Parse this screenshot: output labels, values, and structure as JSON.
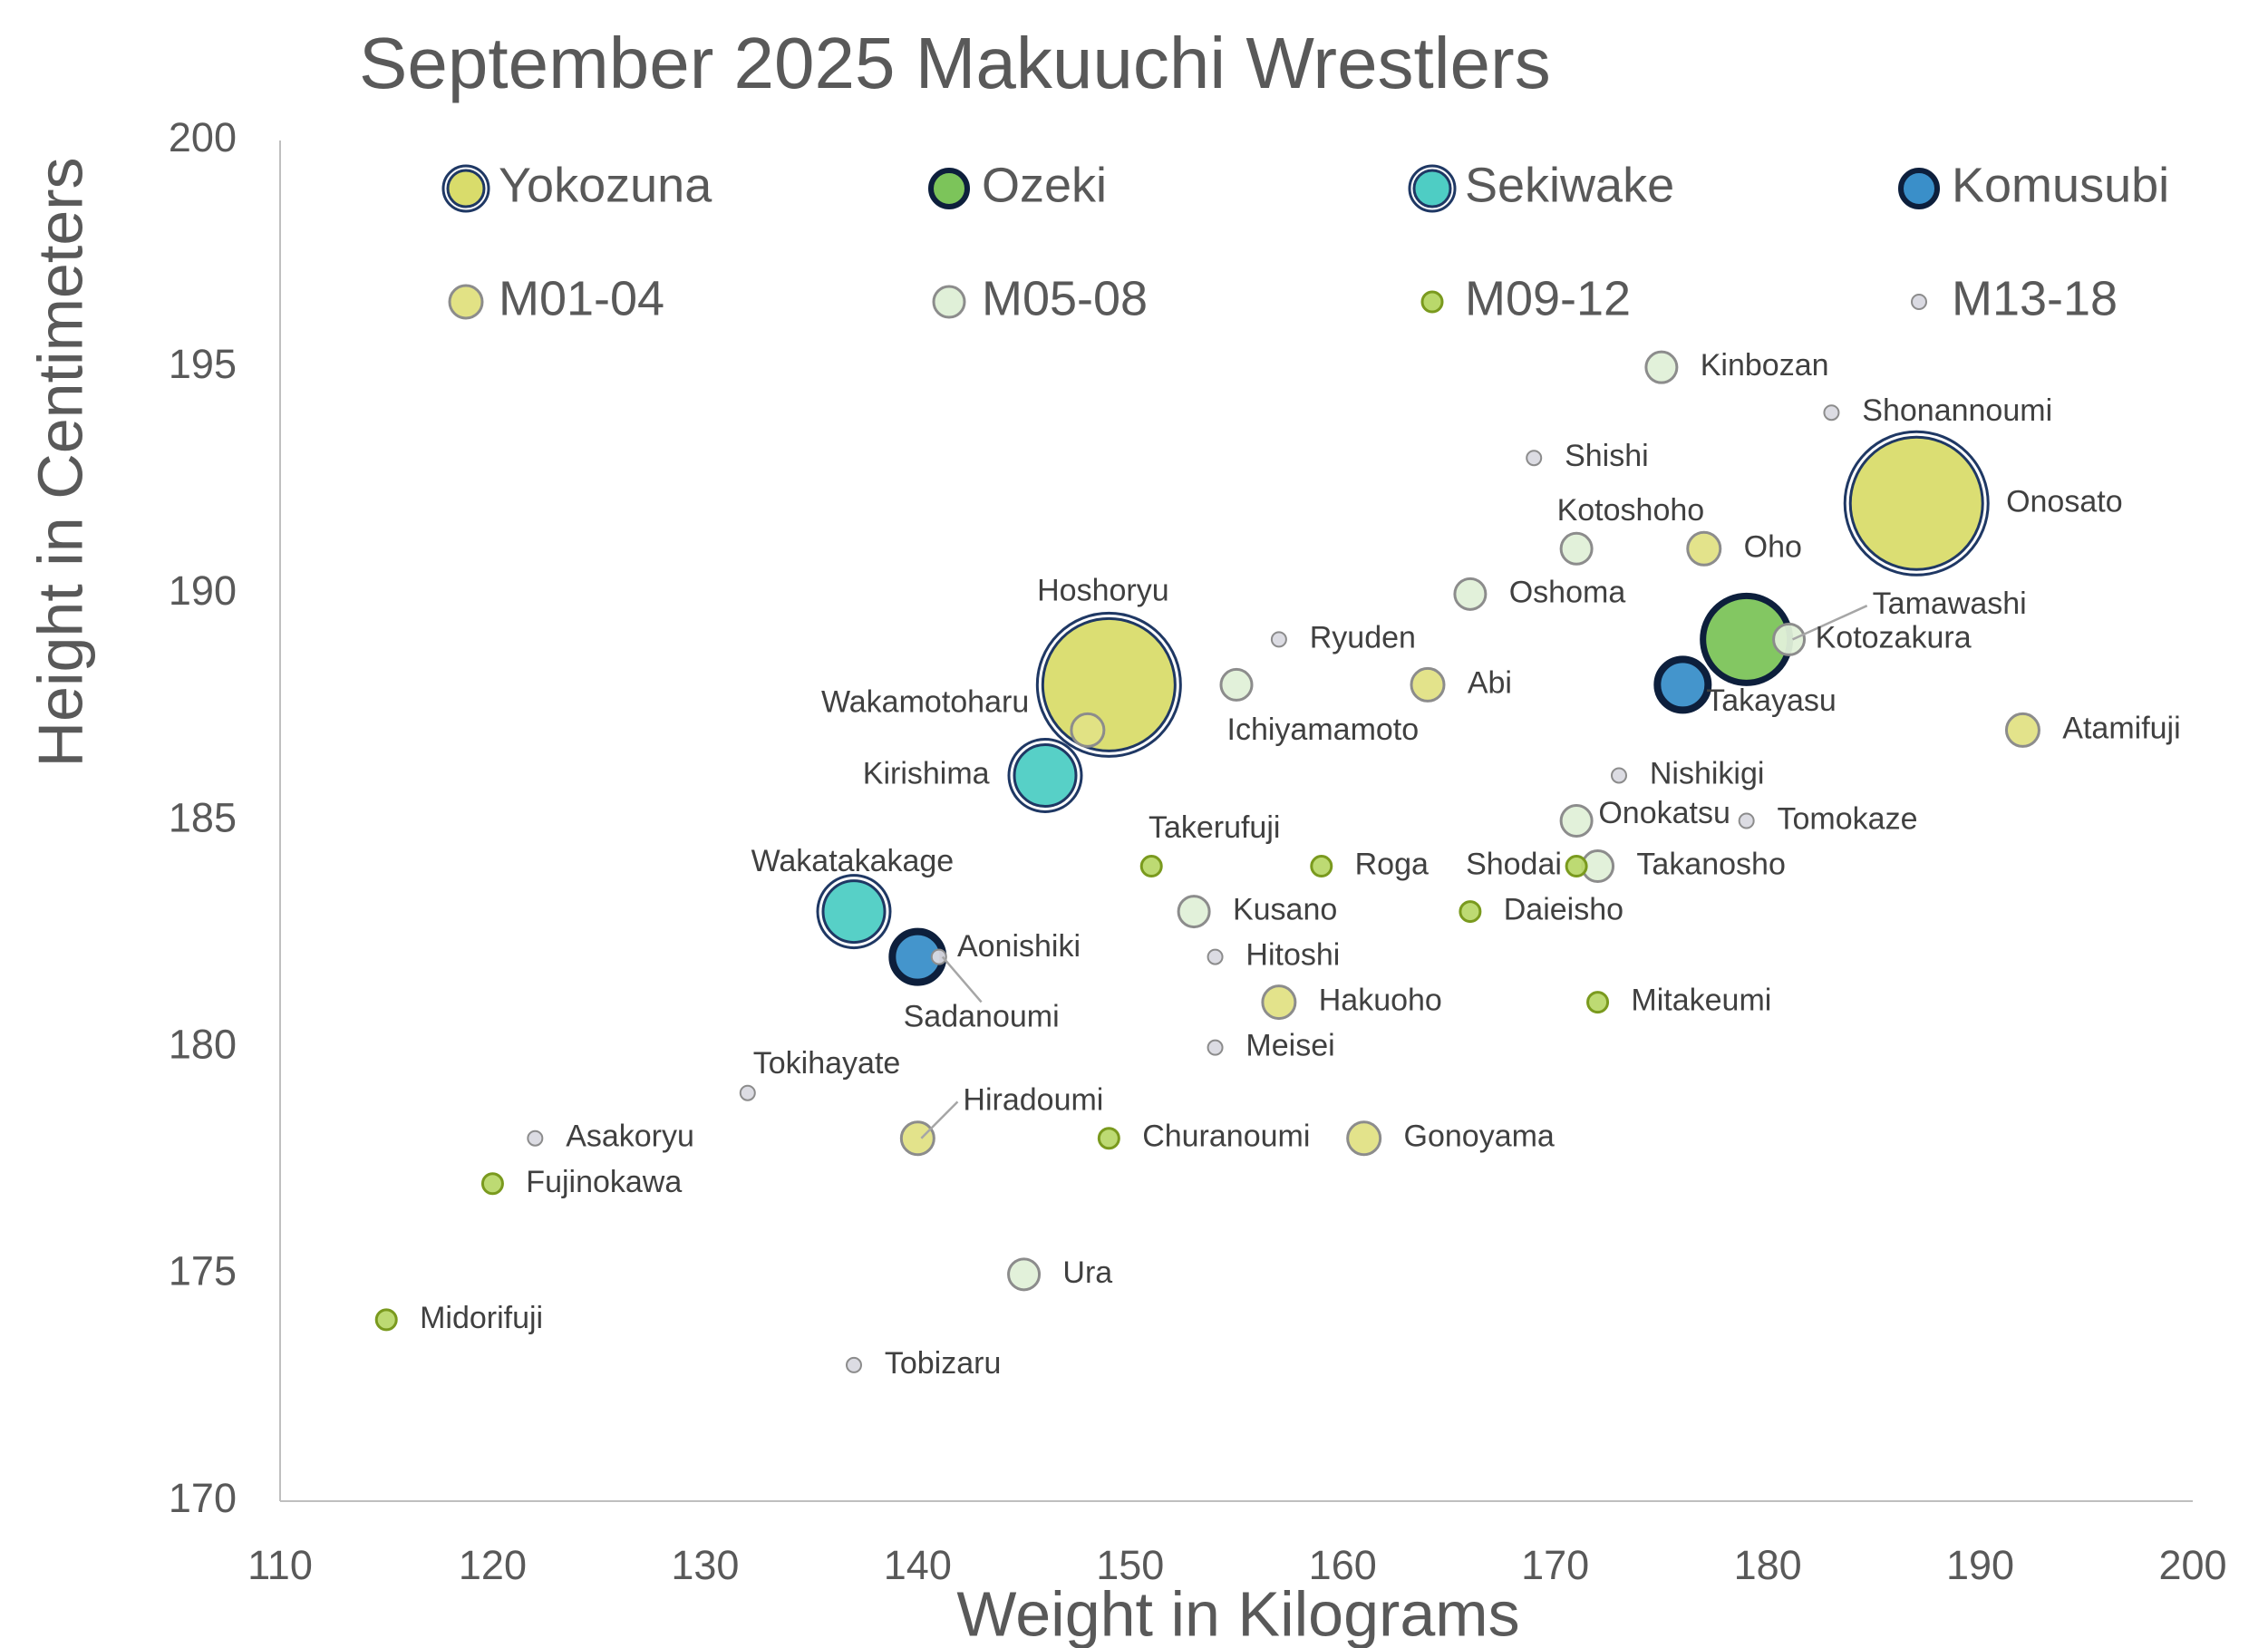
{
  "chart_data": {
    "type": "scatter",
    "title": "September 2025 Makuuchi Wrestlers",
    "x_label": "Weight in Kilograms",
    "y_label": "Height in Centimeters",
    "xlim": [
      110,
      200
    ],
    "xticks": [
      110,
      120,
      130,
      140,
      150,
      160,
      170,
      180,
      190,
      200
    ],
    "ylim": [
      170,
      200
    ],
    "yticks": [
      170,
      175,
      180,
      185,
      190,
      195,
      200
    ],
    "series": [
      {
        "name": "Yokozuna",
        "color": "#d9dc6b",
        "x": [
          149,
          187
        ],
        "values": [
          188,
          192
        ],
        "labels": [
          "Hoshoryu",
          "Onosato"
        ]
      },
      {
        "name": "Ozeki",
        "color": "#7cc45a",
        "x": [
          179
        ],
        "values": [
          189
        ],
        "labels": [
          "Kotozakura"
        ]
      },
      {
        "name": "Sekiwake",
        "color": "#4ecdc4",
        "x": [
          146,
          137
        ],
        "values": [
          186,
          183
        ],
        "labels": [
          "Kirishima",
          "Wakatakakage"
        ]
      },
      {
        "name": "Komusubi",
        "color": "#3a8fc9",
        "x": [
          176,
          140
        ],
        "values": [
          188,
          182
        ],
        "labels": [
          "Takayasu",
          "Aonishiki"
        ]
      },
      {
        "name": "M01-04",
        "color": "#e2e285",
        "x": [
          177,
          164,
          192,
          148,
          157,
          161,
          140
        ],
        "values": [
          191,
          188,
          187,
          187,
          181,
          178,
          178
        ],
        "labels": [
          "Oho",
          "Abi",
          "Atamifuji",
          "Wakamotoharu",
          "Hakuoho",
          "Gonoyama",
          "Hiradoumi"
        ]
      },
      {
        "name": "M05-08",
        "color": "#e0f0d8",
        "x": [
          175,
          171,
          166,
          155,
          171,
          172,
          153,
          145,
          181
        ],
        "values": [
          195,
          191,
          190,
          188,
          185,
          184,
          183,
          175,
          189
        ],
        "labels": [
          "Kinbozan",
          "Kotoshoho",
          "Oshoma",
          "Ichiyamamoto",
          "Onokatsu",
          "Takanosho",
          "Kusano",
          "Ura",
          "Tamawashi"
        ]
      },
      {
        "name": "M09-12",
        "color": "#b9d86b",
        "x": [
          151,
          159,
          171,
          166,
          172,
          149,
          120,
          115
        ],
        "values": [
          184,
          184,
          184,
          183,
          181,
          178,
          177,
          174
        ],
        "labels": [
          "Takerufuji",
          "Roga",
          "Shodai",
          "Daieisho",
          "Mitakeumi",
          "Churanoumi",
          "Fujinokawa",
          "Midorifuji"
        ]
      },
      {
        "name": "M13-18",
        "color": "#dadae2",
        "x": [
          183,
          169,
          157,
          173,
          179,
          154,
          154,
          141,
          132,
          122,
          137
        ],
        "values": [
          194,
          193,
          189,
          186,
          185,
          182,
          180,
          182,
          179,
          178,
          173
        ],
        "labels": [
          "Shonannoumi",
          "Shishi",
          "Ryuden",
          "Nishikigi",
          "Tomokaze",
          "Hitoshi",
          "Meisei",
          "Sadanoumi",
          "Tokihayate",
          "Asakoryu",
          "Tobizaru"
        ]
      }
    ]
  }
}
